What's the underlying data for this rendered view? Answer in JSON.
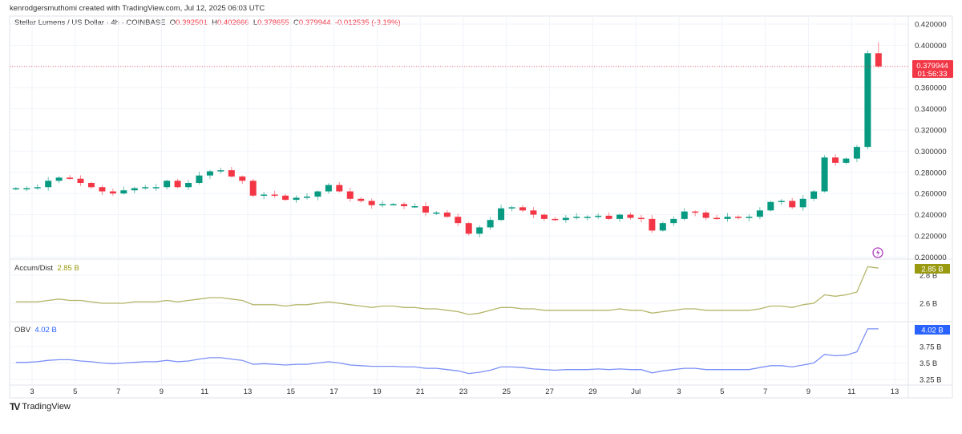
{
  "header": {
    "credit": "kenrodgersmuthomi created with TradingView.com, Jul 12, 2025 06:03 UTC",
    "symbol": "Stellar Lumens / US Dollar · 4h · COINBASE",
    "o_label": "O",
    "o": "0.392501",
    "h_label": "H",
    "h": "0.402666",
    "l_label": "L",
    "l": "0.378655",
    "c_label": "C",
    "c": "0.379944",
    "change": "-0.012535 (-3.19%)"
  },
  "price_badge": {
    "price": "0.379944",
    "countdown": "01:56:33"
  },
  "accum_dist": {
    "label": "Accum/Dist",
    "value": "2.85 B",
    "badge": "2.85 B",
    "color": "#b5b56a",
    "badge_color": "#9a9a10"
  },
  "obv": {
    "label": "OBV",
    "value": "4.02 B",
    "badge": "4.02 B",
    "color": "#7b8ff7",
    "badge_color": "#2962ff"
  },
  "footer": {
    "logo_text": "TradingView"
  },
  "colors": {
    "up": "#089981",
    "down": "#f23645",
    "grid": "#f0f3fa"
  },
  "chart_data": {
    "type": "candlestick",
    "interval_shown": "4h",
    "x_tick_labels": [
      "3",
      "5",
      "7",
      "9",
      "11",
      "13",
      "15",
      "17",
      "19",
      "21",
      "23",
      "25",
      "27",
      "29",
      "Jul",
      "3",
      "5",
      "7",
      "9",
      "11",
      "13"
    ],
    "x_tick_days": [
      3,
      5,
      7,
      9,
      11,
      13,
      15,
      17,
      19,
      21,
      23,
      25,
      27,
      29,
      31,
      33,
      35,
      37,
      39,
      41,
      43
    ],
    "price_axis": {
      "ticks": [
        "0.420000",
        "0.400000",
        "0.380000",
        "0.360000",
        "0.340000",
        "0.320000",
        "0.300000",
        "0.280000",
        "0.260000",
        "0.240000",
        "0.220000",
        "0.200000"
      ],
      "range": [
        0.2,
        0.42
      ]
    },
    "hidden_tick": "0.380000",
    "approx_closes_every_half_day_from_jun_2": [
      0.265,
      0.265,
      0.266,
      0.272,
      0.275,
      0.274,
      0.27,
      0.266,
      0.262,
      0.26,
      0.263,
      0.265,
      0.266,
      0.266,
      0.272,
      0.266,
      0.27,
      0.277,
      0.281,
      0.282,
      0.276,
      0.272,
      0.258,
      0.259,
      0.258,
      0.254,
      0.256,
      0.257,
      0.262,
      0.268,
      0.262,
      0.255,
      0.253,
      0.249,
      0.25,
      0.25,
      0.248,
      0.248,
      0.242,
      0.242,
      0.238,
      0.232,
      0.222,
      0.228,
      0.235,
      0.246,
      0.247,
      0.244,
      0.24,
      0.236,
      0.235,
      0.237,
      0.238,
      0.238,
      0.239,
      0.236,
      0.24,
      0.237,
      0.236,
      0.225,
      0.232,
      0.236,
      0.243,
      0.242,
      0.237,
      0.236,
      0.238,
      0.237,
      0.238,
      0.244,
      0.252,
      0.253,
      0.247,
      0.255,
      0.262,
      0.294,
      0.289,
      0.293,
      0.304,
      0.3925
    ],
    "last_candle": {
      "open": 0.392501,
      "high": 0.402666,
      "low": 0.378655,
      "close": 0.379944
    },
    "accum_dist_axis": {
      "ticks": [
        "2.8 B",
        "2.6 B"
      ]
    },
    "accum_dist_values_B": [
      2.61,
      2.61,
      2.61,
      2.62,
      2.63,
      2.62,
      2.62,
      2.61,
      2.6,
      2.6,
      2.6,
      2.61,
      2.61,
      2.61,
      2.62,
      2.61,
      2.62,
      2.63,
      2.64,
      2.64,
      2.63,
      2.62,
      2.59,
      2.59,
      2.59,
      2.58,
      2.59,
      2.59,
      2.6,
      2.61,
      2.6,
      2.59,
      2.58,
      2.57,
      2.58,
      2.58,
      2.57,
      2.57,
      2.56,
      2.56,
      2.55,
      2.54,
      2.52,
      2.53,
      2.55,
      2.57,
      2.57,
      2.56,
      2.56,
      2.55,
      2.55,
      2.55,
      2.55,
      2.55,
      2.55,
      2.55,
      2.56,
      2.55,
      2.55,
      2.53,
      2.54,
      2.55,
      2.56,
      2.56,
      2.55,
      2.55,
      2.55,
      2.55,
      2.55,
      2.56,
      2.58,
      2.58,
      2.57,
      2.59,
      2.6,
      2.66,
      2.65,
      2.66,
      2.68,
      2.86,
      2.85
    ],
    "obv_axis": {
      "ticks": [
        "3.75 B",
        "3.5 B",
        "3.25 B"
      ]
    },
    "obv_values_B": [
      3.51,
      3.51,
      3.52,
      3.54,
      3.55,
      3.55,
      3.53,
      3.52,
      3.5,
      3.49,
      3.5,
      3.51,
      3.52,
      3.52,
      3.54,
      3.52,
      3.53,
      3.56,
      3.58,
      3.58,
      3.56,
      3.54,
      3.48,
      3.49,
      3.48,
      3.47,
      3.48,
      3.48,
      3.5,
      3.52,
      3.5,
      3.47,
      3.46,
      3.45,
      3.45,
      3.45,
      3.44,
      3.44,
      3.42,
      3.42,
      3.4,
      3.38,
      3.34,
      3.36,
      3.39,
      3.44,
      3.44,
      3.43,
      3.41,
      3.4,
      3.39,
      3.4,
      3.4,
      3.4,
      3.41,
      3.4,
      3.41,
      3.4,
      3.4,
      3.35,
      3.38,
      3.4,
      3.42,
      3.42,
      3.4,
      3.4,
      3.4,
      3.4,
      3.4,
      3.43,
      3.46,
      3.46,
      3.44,
      3.47,
      3.5,
      3.63,
      3.61,
      3.62,
      3.67,
      4.02,
      4.02
    ]
  }
}
